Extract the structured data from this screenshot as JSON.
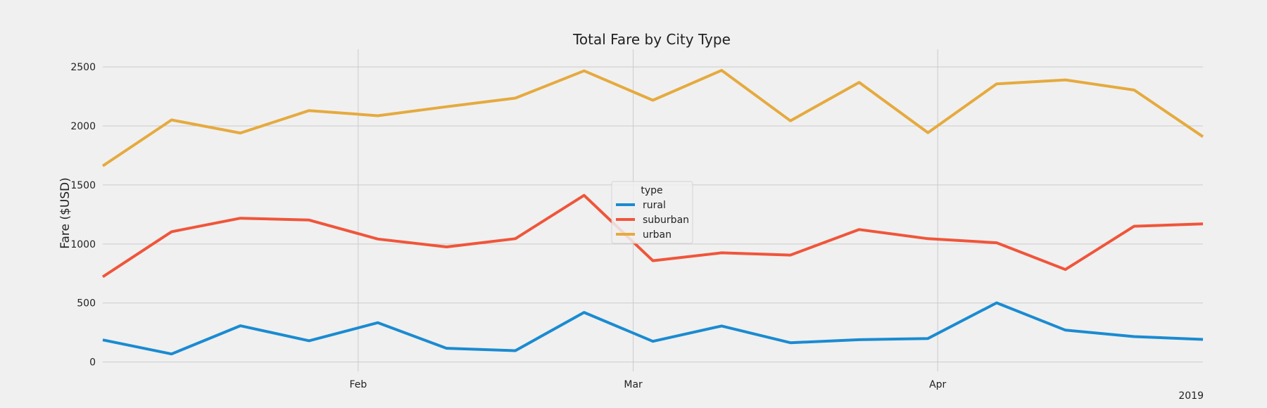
{
  "chart_data": {
    "type": "line",
    "title": "Total Fare by City Type",
    "ylabel": "Fare ($USD)",
    "xlabel": "",
    "x": [
      "2019-01-06",
      "2019-01-13",
      "2019-01-20",
      "2019-01-27",
      "2019-02-03",
      "2019-02-10",
      "2019-02-17",
      "2019-02-24",
      "2019-03-03",
      "2019-03-10",
      "2019-03-17",
      "2019-03-24",
      "2019-03-31",
      "2019-04-07",
      "2019-04-14",
      "2019-04-21",
      "2019-04-28"
    ],
    "xticks": [
      {
        "date": "2019-02-01",
        "label": "Feb"
      },
      {
        "date": "2019-03-01",
        "label": "Mar"
      },
      {
        "date": "2019-04-01",
        "label": "Apr"
      }
    ],
    "year_label": "2019",
    "yticks": [
      0,
      500,
      1000,
      1500,
      2000,
      2500
    ],
    "ylim": [
      -80,
      2650
    ],
    "grid": true,
    "legend": {
      "title": "type",
      "placement": "center"
    },
    "series": [
      {
        "name": "rural",
        "color": "#1a8bd1",
        "values": [
          187,
          68,
          307,
          180,
          333,
          116,
          96,
          420,
          175,
          305,
          163,
          189,
          199,
          501,
          270,
          215,
          191
        ]
      },
      {
        "name": "suburban",
        "color": "#f0553a",
        "values": [
          722,
          1104,
          1218,
          1203,
          1042,
          975,
          1045,
          1412,
          858,
          925,
          906,
          1122,
          1045,
          1010,
          784,
          1150,
          1170
        ]
      },
      {
        "name": "urban",
        "color": "#e5aa3e",
        "values": [
          1661,
          2051,
          1940,
          2130,
          2087,
          2163,
          2236,
          2467,
          2218,
          2471,
          2044,
          2369,
          1943,
          2357,
          2390,
          2304,
          1909
        ]
      }
    ]
  }
}
